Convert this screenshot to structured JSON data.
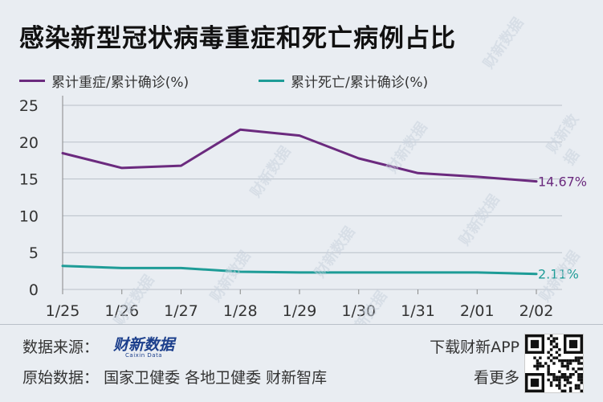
{
  "title": "感染新型冠状病毒重症和死亡病例占比",
  "watermark_text": "财新数据",
  "footer": {
    "source_label": "数据来源：",
    "brand_cn": "财新数据",
    "brand_en": "Caixin Data",
    "raw_label": "原始数据：",
    "raw_sources": "国家卫健委  各地卫健委  财新智库",
    "app_label": "下载财新APP",
    "more_label": "看更多"
  },
  "colors": {
    "severe": "#6b2a7e",
    "death": "#1e9c97",
    "grid": "#b9c0c8",
    "background": "#e9edf2"
  },
  "chart_data": {
    "type": "line",
    "categories": [
      "1/25",
      "1/26",
      "1/27",
      "1/28",
      "1/29",
      "1/30",
      "1/31",
      "2/01",
      "2/02"
    ],
    "series": [
      {
        "name": "累计重症/累计确诊(%)",
        "values": [
          18.5,
          16.5,
          16.8,
          21.7,
          20.9,
          17.8,
          15.8,
          15.3,
          14.67
        ],
        "end_label": "14.67%"
      },
      {
        "name": "累计死亡/累计确诊(%)",
        "values": [
          3.2,
          2.9,
          2.9,
          2.4,
          2.3,
          2.3,
          2.3,
          2.3,
          2.11
        ],
        "end_label": "2.11%"
      }
    ],
    "y_ticks": [
      "0",
      "5",
      "10",
      "15",
      "20",
      "25"
    ],
    "ylim": [
      0,
      25
    ],
    "grid": true,
    "legend_position": "top-left"
  }
}
